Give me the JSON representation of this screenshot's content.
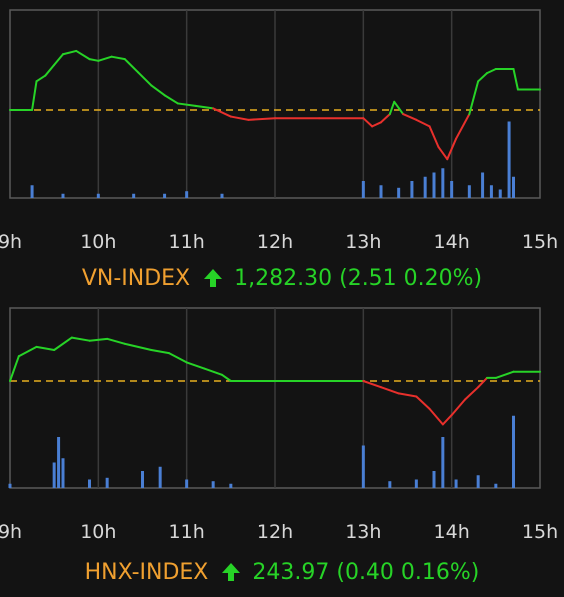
{
  "colors": {
    "up": "#27d327",
    "down": "#e8302c",
    "reference": "#e8b020",
    "volume": "#4a7fd4",
    "index_name": "#f0a030",
    "grid": "#3a3a3a",
    "frame": "#5a5a5a"
  },
  "chart_data": [
    {
      "type": "line",
      "title": "VN-INDEX",
      "x_ticks": [
        "9h",
        "10h",
        "11h",
        "12h",
        "13h",
        "14h",
        "15h"
      ],
      "xlim": [
        9,
        15
      ],
      "reference_line": "dashed",
      "grid": "vertical",
      "price": [
        [
          9.0,
          0.0
        ],
        [
          9.25,
          0.0
        ],
        [
          9.3,
          0.35
        ],
        [
          9.4,
          0.42
        ],
        [
          9.5,
          0.55
        ],
        [
          9.6,
          0.68
        ],
        [
          9.75,
          0.72
        ],
        [
          9.9,
          0.62
        ],
        [
          10.0,
          0.6
        ],
        [
          10.15,
          0.65
        ],
        [
          10.3,
          0.62
        ],
        [
          10.45,
          0.46
        ],
        [
          10.6,
          0.3
        ],
        [
          10.75,
          0.18
        ],
        [
          10.9,
          0.08
        ],
        [
          11.1,
          0.05
        ],
        [
          11.3,
          0.02
        ],
        [
          11.5,
          -0.08
        ],
        [
          11.7,
          -0.12
        ],
        [
          12.0,
          -0.1
        ],
        [
          12.5,
          -0.1
        ],
        [
          13.0,
          -0.1
        ],
        [
          13.1,
          -0.2
        ],
        [
          13.2,
          -0.15
        ],
        [
          13.3,
          -0.05
        ],
        [
          13.35,
          0.1
        ],
        [
          13.45,
          -0.05
        ],
        [
          13.6,
          -0.12
        ],
        [
          13.75,
          -0.2
        ],
        [
          13.85,
          -0.45
        ],
        [
          13.95,
          -0.6
        ],
        [
          14.05,
          -0.35
        ],
        [
          14.2,
          -0.05
        ],
        [
          14.3,
          0.35
        ],
        [
          14.4,
          0.45
        ],
        [
          14.5,
          0.5
        ],
        [
          14.7,
          0.5
        ],
        [
          14.75,
          0.25
        ],
        [
          15.0,
          0.25
        ]
      ],
      "volume": [
        [
          9.25,
          0.15
        ],
        [
          9.6,
          0.05
        ],
        [
          10.0,
          0.05
        ],
        [
          10.4,
          0.05
        ],
        [
          10.75,
          0.05
        ],
        [
          11.0,
          0.08
        ],
        [
          11.4,
          0.05
        ],
        [
          13.0,
          0.2
        ],
        [
          13.2,
          0.15
        ],
        [
          13.4,
          0.12
        ],
        [
          13.55,
          0.2
        ],
        [
          13.7,
          0.25
        ],
        [
          13.8,
          0.3
        ],
        [
          13.9,
          0.35
        ],
        [
          14.0,
          0.2
        ],
        [
          14.2,
          0.15
        ],
        [
          14.35,
          0.3
        ],
        [
          14.45,
          0.15
        ],
        [
          14.55,
          0.1
        ],
        [
          14.65,
          0.9
        ],
        [
          14.7,
          0.25
        ]
      ],
      "caption": {
        "name": "VN-INDEX",
        "value": "1,282.30",
        "change": "(2.51 0.20%)"
      }
    },
    {
      "type": "line",
      "title": "HNX-INDEX",
      "x_ticks": [
        "9h",
        "10h",
        "11h",
        "12h",
        "13h",
        "14h",
        "15h"
      ],
      "xlim": [
        9,
        15
      ],
      "reference_line": "dashed",
      "grid": "vertical",
      "price": [
        [
          9.0,
          0.0
        ],
        [
          9.1,
          0.4
        ],
        [
          9.3,
          0.55
        ],
        [
          9.5,
          0.5
        ],
        [
          9.7,
          0.7
        ],
        [
          9.9,
          0.65
        ],
        [
          10.1,
          0.68
        ],
        [
          10.3,
          0.6
        ],
        [
          10.6,
          0.5
        ],
        [
          10.8,
          0.45
        ],
        [
          11.0,
          0.3
        ],
        [
          11.2,
          0.2
        ],
        [
          11.4,
          0.1
        ],
        [
          11.5,
          0.0
        ],
        [
          12.0,
          0.0
        ],
        [
          12.5,
          0.0
        ],
        [
          13.0,
          0.0
        ],
        [
          13.2,
          -0.1
        ],
        [
          13.4,
          -0.2
        ],
        [
          13.6,
          -0.25
        ],
        [
          13.75,
          -0.45
        ],
        [
          13.9,
          -0.7
        ],
        [
          14.0,
          -0.55
        ],
        [
          14.15,
          -0.3
        ],
        [
          14.3,
          -0.1
        ],
        [
          14.4,
          0.05
        ],
        [
          14.5,
          0.05
        ],
        [
          14.7,
          0.15
        ],
        [
          15.0,
          0.15
        ]
      ],
      "volume": [
        [
          9.0,
          0.05
        ],
        [
          9.5,
          0.3
        ],
        [
          9.55,
          0.6
        ],
        [
          9.6,
          0.35
        ],
        [
          9.9,
          0.1
        ],
        [
          10.1,
          0.12
        ],
        [
          10.5,
          0.2
        ],
        [
          10.7,
          0.25
        ],
        [
          11.0,
          0.1
        ],
        [
          11.3,
          0.08
        ],
        [
          11.5,
          0.05
        ],
        [
          13.0,
          0.5
        ],
        [
          13.3,
          0.08
        ],
        [
          13.6,
          0.1
        ],
        [
          13.8,
          0.2
        ],
        [
          13.9,
          0.6
        ],
        [
          14.05,
          0.1
        ],
        [
          14.3,
          0.15
        ],
        [
          14.5,
          0.05
        ],
        [
          14.7,
          0.85
        ]
      ],
      "caption": {
        "name": "HNX-INDEX",
        "value": "243.97",
        "change": "(0.40 0.16%)"
      }
    }
  ]
}
